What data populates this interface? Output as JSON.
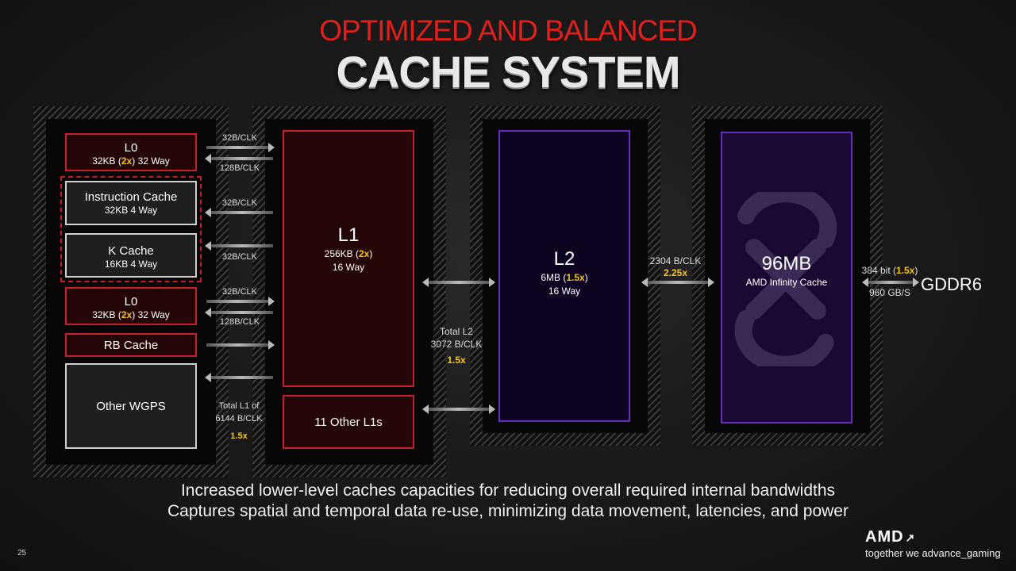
{
  "title": {
    "line1": "OPTIMIZED AND BALANCED",
    "line2": "CACHE SYSTEM"
  },
  "wgp": {
    "l0_top": {
      "name": "L0",
      "detail_a": "32KB (",
      "mult": "2x",
      "detail_b": ") 32 Way"
    },
    "instruction_cache": {
      "name": "Instruction Cache",
      "detail": "32KB 4 Way"
    },
    "k_cache": {
      "name": "K Cache",
      "detail": "16KB 4 Way"
    },
    "l0_bottom": {
      "name": "L0",
      "detail_a": "32KB (",
      "mult": "2x",
      "detail_b": ") 32 Way"
    },
    "rb_cache": {
      "name": "RB Cache"
    },
    "other_wgps": {
      "name": "Other WGPS"
    }
  },
  "bandwidths": {
    "l0_top_a": "32B/CLK",
    "l0_top_b": "128B/CLK",
    "icache": "32B/CLK",
    "kcache": "32B/CLK",
    "l0_bottom_a": "32B/CLK",
    "l0_bottom_b": "128B/CLK",
    "total_l1_a": "Total L1 of",
    "total_l1_b": "6144  B/CLK",
    "total_l1_mult": "1.5x",
    "total_l2_a": "Total L2",
    "total_l2_b": "3072 B/CLK",
    "total_l2_mult": "1.5x",
    "l2_ic": "2304 B/CLK",
    "l2_ic_mult": "2.25x",
    "mem_a": "384 bit (",
    "mem_mult": "1.5x",
    "mem_b": ")",
    "mem_c": "960 GB/S"
  },
  "l1": {
    "name": "L1",
    "detail_a": "256KB (",
    "mult": "2x",
    "detail_b": ")",
    "ways": "16 Way"
  },
  "other_l1": {
    "name": "11 Other L1s"
  },
  "l2": {
    "name": "L2",
    "detail_a": "6MB (",
    "mult": "1.5x",
    "detail_b": ")",
    "ways": "16 Way"
  },
  "infinity": {
    "name": "96MB",
    "detail": "AMD Infinity Cache"
  },
  "memory": {
    "name": "GDDR6"
  },
  "footer": {
    "line1": "Increased lower-level caches capacities for reducing overall required internal bandwidths",
    "line2": "Captures spatial and temporal data re-use, minimizing data movement, latencies, and power"
  },
  "page_number": "25",
  "brand": {
    "logo": "AMD",
    "tagline": "together we advance_gaming"
  },
  "colors": {
    "title_red": "#e0201c",
    "accent_yellow": "#f5c518",
    "red_border": "#c8202a",
    "purple_border": "#6a2bc0"
  }
}
